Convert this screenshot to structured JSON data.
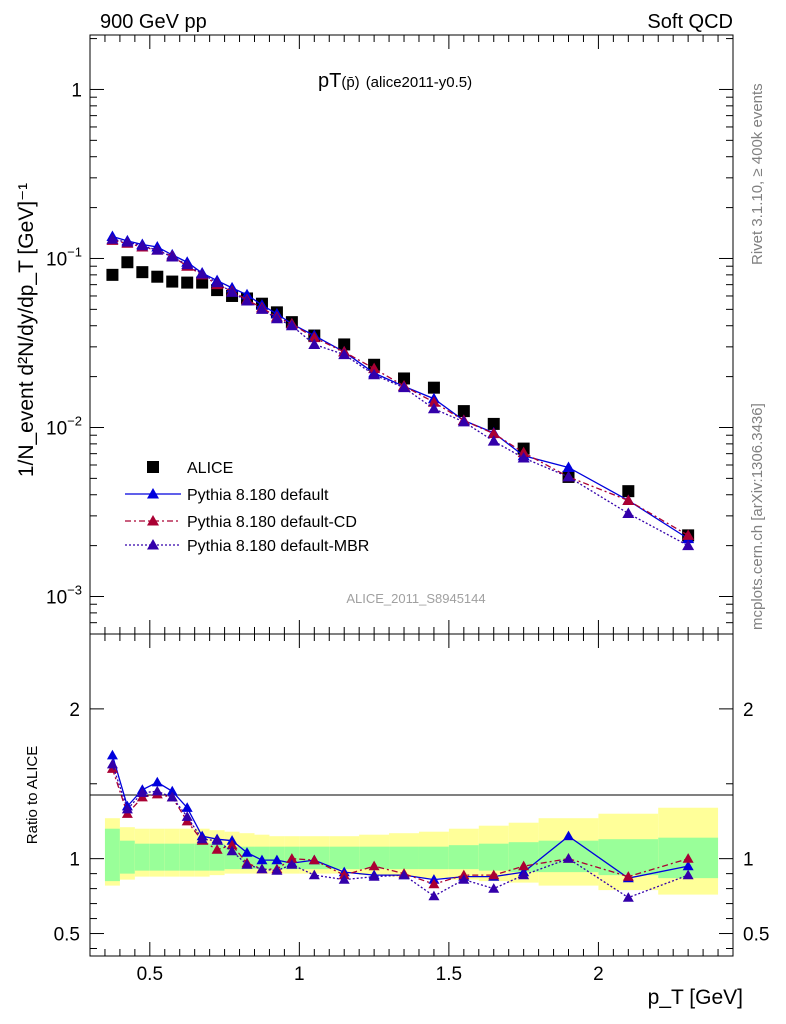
{
  "header": {
    "left": "900 GeV pp",
    "right": "Soft QCD"
  },
  "side": {
    "rivet": "Rivet 3.1.10, ≥ 400k events",
    "mcplots": "mcplots.cern.ch [arXiv:1306.3436]"
  },
  "watermark": "ALICE_2011_S8945144",
  "colors": {
    "data": "#000000",
    "default": "#0000dd",
    "cd": "#aa0033",
    "mbr": "#3300aa",
    "band_inner": "#99ff99",
    "band_outer": "#ffff99"
  },
  "chart_data": [
    {
      "type": "scatter",
      "title_main": "pT",
      "title_particle": "(p̄)",
      "title_tag": "(alice2011-y0.5)",
      "ylabel": "1/N_event d²N/dy/dp_T [GeV]⁻¹",
      "yscale": "log",
      "ylim": [
        0.0006,
        2.1
      ],
      "xlim": [
        0.3,
        2.45
      ],
      "yticks": [
        {
          "label": "1",
          "value": 1
        },
        {
          "label": "10⁻¹",
          "value": 0.1
        },
        {
          "label": "10⁻²",
          "value": 0.01
        },
        {
          "label": "10⁻³",
          "value": 0.001
        }
      ],
      "legend_position": "lower-left",
      "legend": [
        {
          "key": "alice",
          "label": "ALICE"
        },
        {
          "key": "default",
          "label": "Pythia 8.180 default"
        },
        {
          "key": "cd",
          "label": "Pythia 8.180 default-CD"
        },
        {
          "key": "mbr",
          "label": "Pythia 8.180 default-MBR"
        }
      ],
      "x": [
        0.375,
        0.425,
        0.475,
        0.525,
        0.575,
        0.625,
        0.675,
        0.725,
        0.775,
        0.825,
        0.875,
        0.925,
        0.975,
        1.05,
        1.15,
        1.25,
        1.35,
        1.45,
        1.55,
        1.65,
        1.75,
        1.9,
        2.1,
        2.3
      ],
      "series": [
        {
          "key": "alice",
          "name": "ALICE",
          "values": [
            0.08,
            0.095,
            0.083,
            0.078,
            0.073,
            0.072,
            0.072,
            0.065,
            0.06,
            0.058,
            0.054,
            0.048,
            0.042,
            0.035,
            0.031,
            0.0235,
            0.0195,
            0.0172,
            0.0125,
            0.0105,
            0.0075,
            0.0051,
            0.0042,
            0.0023
          ]
        },
        {
          "key": "default",
          "name": "Pythia 8.180 default",
          "values": [
            0.135,
            0.127,
            0.121,
            0.117,
            0.105,
            0.095,
            0.082,
            0.074,
            0.067,
            0.061,
            0.053,
            0.047,
            0.041,
            0.035,
            0.028,
            0.021,
            0.0175,
            0.0148,
            0.011,
            0.0093,
            0.0068,
            0.0058,
            0.0037,
            0.0022
          ]
        },
        {
          "key": "cd",
          "name": "Pythia 8.180 default-CD",
          "values": [
            0.128,
            0.123,
            0.117,
            0.112,
            0.103,
            0.09,
            0.08,
            0.07,
            0.064,
            0.057,
            0.051,
            0.045,
            0.041,
            0.034,
            0.028,
            0.0223,
            0.0176,
            0.0141,
            0.011,
            0.0092,
            0.0071,
            0.0051,
            0.0037,
            0.0023
          ]
        },
        {
          "key": "mbr",
          "name": "Pythia 8.180 default-MBR",
          "values": [
            0.13,
            0.125,
            0.119,
            0.112,
            0.102,
            0.092,
            0.081,
            0.072,
            0.063,
            0.056,
            0.05,
            0.044,
            0.04,
            0.031,
            0.027,
            0.0205,
            0.0172,
            0.0129,
            0.0108,
            0.0083,
            0.0066,
            0.0051,
            0.0031,
            0.002
          ]
        }
      ]
    },
    {
      "type": "scatter",
      "xlabel": "p_T [GeV]",
      "ylabel": "Ratio to ALICE",
      "ylim": [
        0.35,
        2.5
      ],
      "xlim": [
        0.3,
        2.45
      ],
      "reference": 1,
      "yticks": [
        {
          "label": "2",
          "value": 2
        },
        {
          "label": "1",
          "value": 1
        },
        {
          "label": "0.5",
          "value": 0.5
        }
      ],
      "xticks": [
        {
          "label": "0.5",
          "value": 0.5
        },
        {
          "label": "1",
          "value": 1
        },
        {
          "label": "1.5",
          "value": 1.5
        },
        {
          "label": "2",
          "value": 2
        }
      ],
      "x": [
        0.375,
        0.425,
        0.475,
        0.525,
        0.575,
        0.625,
        0.675,
        0.725,
        0.775,
        0.825,
        0.875,
        0.925,
        0.975,
        1.05,
        1.15,
        1.25,
        1.35,
        1.45,
        1.55,
        1.65,
        1.75,
        1.9,
        2.1,
        2.3
      ],
      "bins": [
        [
          0.35,
          0.4
        ],
        [
          0.4,
          0.45
        ],
        [
          0.45,
          0.5
        ],
        [
          0.5,
          0.55
        ],
        [
          0.55,
          0.6
        ],
        [
          0.6,
          0.65
        ],
        [
          0.65,
          0.7
        ],
        [
          0.7,
          0.75
        ],
        [
          0.75,
          0.8
        ],
        [
          0.8,
          0.85
        ],
        [
          0.85,
          0.9
        ],
        [
          0.9,
          0.95
        ],
        [
          0.95,
          1.0
        ],
        [
          1.0,
          1.1
        ],
        [
          1.1,
          1.2
        ],
        [
          1.2,
          1.3
        ],
        [
          1.3,
          1.4
        ],
        [
          1.4,
          1.5
        ],
        [
          1.5,
          1.6
        ],
        [
          1.6,
          1.7
        ],
        [
          1.7,
          1.8
        ],
        [
          1.8,
          2.0
        ],
        [
          2.0,
          2.2
        ],
        [
          2.2,
          2.4
        ]
      ],
      "band_inner": [
        [
          0.85,
          1.2
        ],
        [
          0.9,
          1.12
        ],
        [
          0.92,
          1.1
        ],
        [
          0.92,
          1.1
        ],
        [
          0.92,
          1.1
        ],
        [
          0.92,
          1.1
        ],
        [
          0.92,
          1.1
        ],
        [
          0.92,
          1.1
        ],
        [
          0.93,
          1.08
        ],
        [
          0.93,
          1.08
        ],
        [
          0.93,
          1.08
        ],
        [
          0.93,
          1.08
        ],
        [
          0.93,
          1.08
        ],
        [
          0.93,
          1.08
        ],
        [
          0.93,
          1.08
        ],
        [
          0.93,
          1.08
        ],
        [
          0.93,
          1.08
        ],
        [
          0.93,
          1.08
        ],
        [
          0.93,
          1.09
        ],
        [
          0.92,
          1.1
        ],
        [
          0.91,
          1.11
        ],
        [
          0.91,
          1.12
        ],
        [
          0.89,
          1.13
        ],
        [
          0.87,
          1.14
        ]
      ],
      "band_outer": [
        [
          0.82,
          1.27
        ],
        [
          0.86,
          1.21
        ],
        [
          0.88,
          1.2
        ],
        [
          0.88,
          1.2
        ],
        [
          0.88,
          1.2
        ],
        [
          0.88,
          1.2
        ],
        [
          0.88,
          1.2
        ],
        [
          0.89,
          1.19
        ],
        [
          0.9,
          1.18
        ],
        [
          0.9,
          1.17
        ],
        [
          0.9,
          1.16
        ],
        [
          0.9,
          1.15
        ],
        [
          0.9,
          1.15
        ],
        [
          0.9,
          1.15
        ],
        [
          0.9,
          1.15
        ],
        [
          0.89,
          1.16
        ],
        [
          0.88,
          1.17
        ],
        [
          0.87,
          1.18
        ],
        [
          0.86,
          1.2
        ],
        [
          0.85,
          1.22
        ],
        [
          0.84,
          1.24
        ],
        [
          0.82,
          1.27
        ],
        [
          0.79,
          1.3
        ],
        [
          0.76,
          1.34
        ]
      ],
      "series": [
        {
          "key": "default",
          "name": "Pythia 8.180 default",
          "values": [
            1.69,
            1.35,
            1.46,
            1.51,
            1.45,
            1.34,
            1.15,
            1.13,
            1.12,
            1.04,
            0.99,
            0.99,
            0.97,
            0.99,
            0.91,
            0.89,
            0.89,
            0.86,
            0.88,
            0.88,
            0.91,
            1.15,
            0.87,
            0.95
          ]
        },
        {
          "key": "cd",
          "name": "Pythia 8.180 default-CD",
          "values": [
            1.6,
            1.3,
            1.41,
            1.43,
            1.41,
            1.25,
            1.12,
            1.06,
            1.09,
            0.97,
            0.93,
            0.93,
            1.0,
            0.99,
            0.89,
            0.95,
            0.9,
            0.83,
            0.89,
            0.89,
            0.95,
            1.0,
            0.88,
            1.0
          ]
        },
        {
          "key": "mbr",
          "name": "Pythia 8.180 default-MBR",
          "values": [
            1.63,
            1.33,
            1.44,
            1.45,
            1.41,
            1.28,
            1.13,
            1.12,
            1.05,
            0.96,
            0.93,
            0.92,
            0.96,
            0.89,
            0.86,
            0.88,
            0.89,
            0.75,
            0.86,
            0.8,
            0.89,
            1.0,
            0.74,
            0.89
          ]
        }
      ]
    }
  ]
}
